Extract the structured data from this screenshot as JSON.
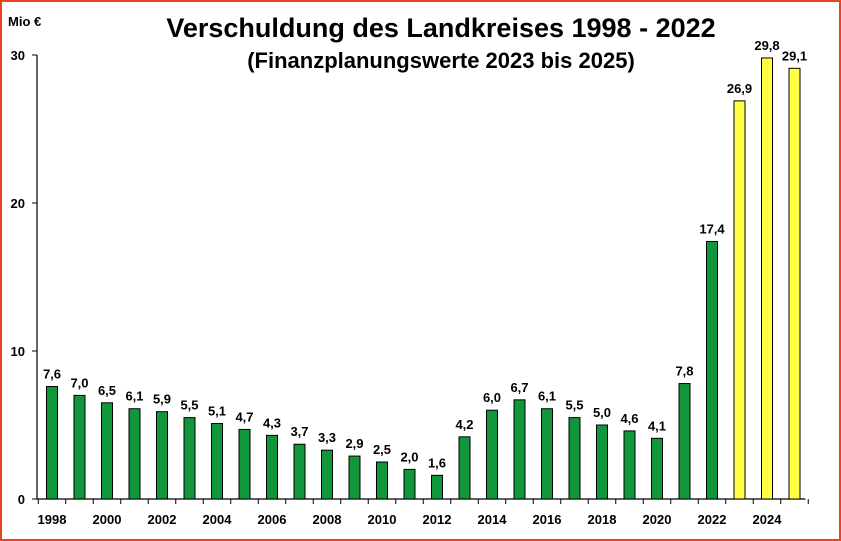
{
  "chart_data": {
    "type": "bar",
    "title": "Verschuldung des Landkreises 1998 - 2022",
    "subtitle": "(Finanzplanungswerte 2023 bis 2025)",
    "ylabel": "Mio €",
    "xlabel": "",
    "ylim": [
      0,
      30
    ],
    "yticks": [
      0,
      10,
      20,
      30
    ],
    "xtick_labels": [
      "1998",
      "2000",
      "2002",
      "2004",
      "2006",
      "2008",
      "2010",
      "2012",
      "2014",
      "2016",
      "2018",
      "2020",
      "2022",
      "2024"
    ],
    "categories": [
      "1998",
      "1999",
      "2000",
      "2001",
      "2002",
      "2003",
      "2004",
      "2005",
      "2006",
      "2007",
      "2008",
      "2009",
      "2010",
      "2011",
      "2012",
      "2013",
      "2014",
      "2015",
      "2016",
      "2017",
      "2018",
      "2019",
      "2020",
      "2021",
      "2022",
      "2023",
      "2024",
      "2025"
    ],
    "values": [
      7.6,
      7.0,
      6.5,
      6.1,
      5.9,
      5.5,
      5.1,
      4.7,
      4.3,
      3.7,
      3.3,
      2.9,
      2.5,
      2.0,
      1.6,
      4.2,
      6.0,
      6.7,
      6.1,
      5.5,
      5.0,
      4.6,
      4.1,
      7.8,
      17.4,
      26.9,
      29.8,
      29.1
    ],
    "value_labels": [
      "7,6",
      "7,0",
      "6,5",
      "6,1",
      "5,9",
      "5,5",
      "5,1",
      "4,7",
      "4,3",
      "3,7",
      "3,3",
      "2,9",
      "2,5",
      "2,0",
      "1,6",
      "4,2",
      "6,0",
      "6,7",
      "6,1",
      "5,5",
      "5,0",
      "4,6",
      "4,1",
      "7,8",
      "17,4",
      "26,9",
      "29,8",
      "29,1"
    ],
    "series_kinds": [
      "actual",
      "actual",
      "actual",
      "actual",
      "actual",
      "actual",
      "actual",
      "actual",
      "actual",
      "actual",
      "actual",
      "actual",
      "actual",
      "actual",
      "actual",
      "actual",
      "actual",
      "actual",
      "actual",
      "actual",
      "actual",
      "actual",
      "actual",
      "actual",
      "actual",
      "plan",
      "plan",
      "plan"
    ],
    "colors": {
      "actual": "#12963c",
      "plan": "#ffff44",
      "frame": "#e8421e"
    },
    "grid": false,
    "legend": "none"
  }
}
